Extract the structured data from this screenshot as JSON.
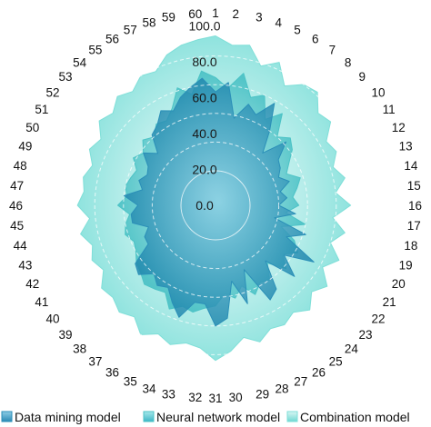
{
  "chart_data": {
    "type": "radar",
    "title": "",
    "categories": [
      "1",
      "2",
      "3",
      "4",
      "5",
      "6",
      "7",
      "8",
      "9",
      "10",
      "11",
      "12",
      "13",
      "14",
      "15",
      "16",
      "17",
      "18",
      "19",
      "20",
      "21",
      "22",
      "23",
      "24",
      "25",
      "26",
      "27",
      "28",
      "29",
      "30",
      "31",
      "32",
      "33",
      "34",
      "35",
      "36",
      "37",
      "38",
      "39",
      "40",
      "41",
      "42",
      "43",
      "44",
      "45",
      "46",
      "47",
      "48",
      "49",
      "50",
      "51",
      "52",
      "53",
      "54",
      "55",
      "56",
      "57",
      "58",
      "59",
      "60"
    ],
    "radial_ticks": [
      "0.0",
      "20.0",
      "40.0",
      "60.0",
      "80.0",
      "100.0"
    ],
    "rlim": [
      -20,
      100
    ],
    "grid": true,
    "legend_position": "bottom",
    "series": [
      {
        "name": "Data mining model",
        "color": "#2b8fb8",
        "values": [
          55,
          62,
          38,
          50,
          45,
          58,
          40,
          25,
          42,
          30,
          28,
          24,
          30,
          22,
          26,
          20,
          32,
          18,
          42,
          30,
          55,
          35,
          50,
          28,
          48,
          52,
          25,
          48,
          30,
          55,
          60,
          45,
          45,
          58,
          50,
          42,
          45,
          40,
          48,
          45,
          30,
          30,
          25,
          35,
          35,
          30,
          40,
          28,
          32,
          28,
          30,
          38,
          30,
          42,
          45,
          52,
          48,
          55,
          60,
          65
        ]
      },
      {
        "name": "Neural network model",
        "color": "#4cc3c6",
        "values": [
          65,
          58,
          70,
          55,
          60,
          45,
          55,
          40,
          46,
          42,
          35,
          30,
          38,
          34,
          30,
          34,
          25,
          40,
          24,
          36,
          42,
          34,
          42,
          30,
          40,
          38,
          44,
          35,
          42,
          38,
          46,
          48,
          52,
          50,
          55,
          46,
          48,
          50,
          46,
          44,
          40,
          38,
          42,
          40,
          36,
          44,
          38,
          40,
          38,
          36,
          42,
          38,
          44,
          40,
          46,
          44,
          50,
          62,
          55,
          70
        ]
      },
      {
        "name": "Combination model",
        "color": "#7fdfd8",
        "values": [
          94,
          88,
          90,
          78,
          85,
          72,
          80,
          82,
          72,
          75,
          65,
          68,
          62,
          68,
          60,
          70,
          58,
          68,
          60,
          70,
          62,
          72,
          66,
          74,
          68,
          72,
          70,
          76,
          70,
          78,
          84,
          76,
          74,
          78,
          74,
          80,
          72,
          76,
          72,
          74,
          66,
          70,
          66,
          72,
          64,
          72,
          68,
          70,
          66,
          72,
          68,
          76,
          72,
          78,
          74,
          80,
          78,
          86,
          90,
          92
        ]
      }
    ]
  }
}
